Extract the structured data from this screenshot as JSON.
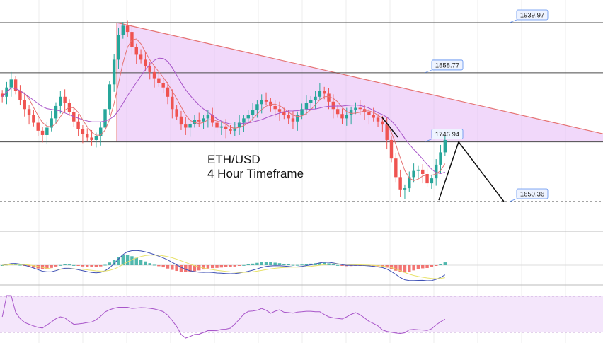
{
  "chart_data": {
    "type": "candlestick",
    "symbol_label": "ETH/USD",
    "timeframe_label": "4 Hour Timeframe",
    "price_levels": [
      {
        "value": 1939.97,
        "label": "1939.97"
      },
      {
        "value": 1858.77,
        "label": "1858.77"
      },
      {
        "value": 1746.94,
        "label": "1746.94"
      },
      {
        "value": 1650.36,
        "label": "1650.36"
      }
    ],
    "approx_price_range": [
      1620,
      1950
    ],
    "pattern": "descending triangle",
    "triangle": {
      "upper_start": 1939.97,
      "upper_end": 1760,
      "support": 1746.94
    },
    "projection": [
      "up to 1746.94",
      "down to 1650.36"
    ],
    "indicators": [
      "moving averages",
      "MACD histogram",
      "RSI"
    ],
    "close_series": [
      1820,
      1835,
      1848,
      1830,
      1815,
      1800,
      1790,
      1778,
      1765,
      1758,
      1770,
      1785,
      1805,
      1820,
      1810,
      1795,
      1780,
      1768,
      1760,
      1754,
      1750,
      1756,
      1770,
      1800,
      1840,
      1880,
      1920,
      1935,
      1925,
      1900,
      1888,
      1880,
      1870,
      1860,
      1850,
      1842,
      1835,
      1820,
      1800,
      1788,
      1775,
      1770,
      1776,
      1782,
      1780,
      1785,
      1790,
      1778,
      1770,
      1772,
      1768,
      1765,
      1770,
      1778,
      1785,
      1790,
      1798,
      1808,
      1815,
      1812,
      1805,
      1800,
      1796,
      1790,
      1785,
      1780,
      1790,
      1800,
      1810,
      1815,
      1820,
      1830,
      1825,
      1812,
      1800,
      1792,
      1785,
      1790,
      1798,
      1802,
      1800,
      1795,
      1790,
      1786,
      1780,
      1775,
      1750,
      1720,
      1690,
      1670,
      1672,
      1690,
      1700,
      1702,
      1695,
      1680,
      1688,
      1710,
      1730,
      1750
    ]
  },
  "colors": {
    "bull": "#26a69a",
    "bear": "#ef5350",
    "triangle_fill": "#e5b8f5",
    "triangle_line": "#e57373",
    "level_line": "#4a4a4a",
    "label_border": "#5b8def",
    "label_bg": "#eef3ff",
    "rsi_line": "#a855c9",
    "rsi_band": "#f4e6fb",
    "macd_line": "#3f51b5",
    "signal_line": "#e8e26b",
    "ma_fast": "#e57373",
    "ma_slow": "#a855c9",
    "grid": "#ececec"
  }
}
